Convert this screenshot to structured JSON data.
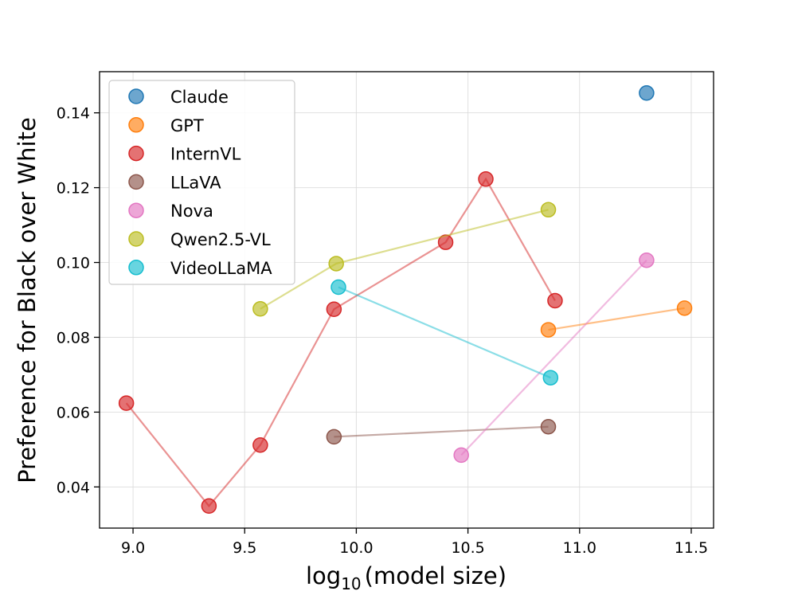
{
  "chart_data": {
    "type": "scatter",
    "title": "",
    "xlabel": "log",
    "xlabel_sub": "10",
    "xlabel_rest": "(model size)",
    "ylabel": "Preference for Black over White",
    "xlim": [
      8.85,
      11.6
    ],
    "ylim": [
      0.029,
      0.151
    ],
    "xticks": [
      9.0,
      9.5,
      10.0,
      10.5,
      11.0,
      11.5
    ],
    "xtick_labels": [
      "9.0",
      "9.5",
      "10.0",
      "10.5",
      "11.0",
      "11.5"
    ],
    "yticks": [
      0.04,
      0.06,
      0.08,
      0.1,
      0.12,
      0.14
    ],
    "ytick_labels": [
      "0.04",
      "0.06",
      "0.08",
      "0.10",
      "0.12",
      "0.14"
    ],
    "grid": true,
    "legend_position": "top-left",
    "series": [
      {
        "name": "Claude",
        "color": "#1f77b4",
        "points": [
          [
            11.3,
            0.1453
          ]
        ]
      },
      {
        "name": "GPT",
        "color": "#ff7f0e",
        "points": [
          [
            10.86,
            0.082
          ],
          [
            11.47,
            0.0878
          ]
        ]
      },
      {
        "name": "InternVL",
        "color": "#d62728",
        "points": [
          [
            8.97,
            0.0624
          ],
          [
            9.34,
            0.0349
          ],
          [
            9.57,
            0.0512
          ],
          [
            9.9,
            0.0875
          ],
          [
            10.4,
            0.1054
          ],
          [
            10.58,
            0.1223
          ],
          [
            10.89,
            0.0898
          ]
        ]
      },
      {
        "name": "LLaVA",
        "color": "#8c564b",
        "points": [
          [
            9.9,
            0.0534
          ],
          [
            10.86,
            0.0561
          ]
        ]
      },
      {
        "name": "Nova",
        "color": "#e377c2",
        "points": [
          [
            10.47,
            0.0485
          ],
          [
            11.3,
            0.1006
          ]
        ]
      },
      {
        "name": "Qwen2.5-VL",
        "color": "#bcbd22",
        "points": [
          [
            9.57,
            0.0876
          ],
          [
            9.91,
            0.0997
          ],
          [
            10.86,
            0.1141
          ]
        ]
      },
      {
        "name": "VideoLLaMA",
        "color": "#17becf",
        "points": [
          [
            9.92,
            0.0934
          ],
          [
            10.87,
            0.0692
          ]
        ]
      }
    ]
  }
}
